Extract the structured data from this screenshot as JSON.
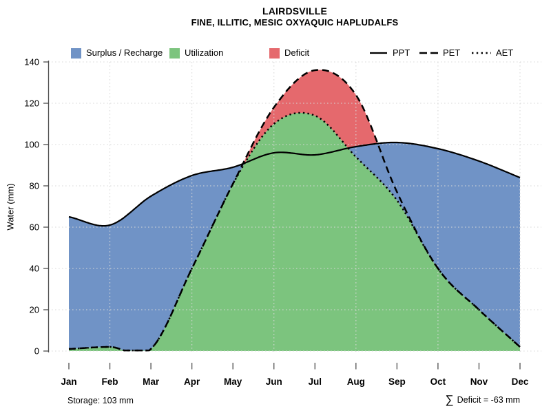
{
  "chart_data": {
    "type": "area+line",
    "title": "LAIRDSVILLE",
    "subtitle": "FINE, ILLITIC, MESIC OXYAQUIC HAPLUDALFS",
    "ylabel": "Water (mm)",
    "ylim": [
      0,
      140
    ],
    "yticks": [
      0,
      20,
      40,
      60,
      80,
      100,
      120,
      140
    ],
    "x_categories": [
      "Jan",
      "Feb",
      "Mar",
      "Apr",
      "May",
      "Jun",
      "Jul",
      "Aug",
      "Sep",
      "Oct",
      "Nov",
      "Dec"
    ],
    "vertical_gridline_months": [
      "Feb",
      "Apr",
      "Jun",
      "Aug",
      "Oct",
      "Dec"
    ],
    "grid_on": true,
    "legend_position": "top",
    "series": [
      {
        "name": "PPT",
        "style": "solid",
        "color": "#000000",
        "values": [
          65,
          61,
          75,
          85,
          89,
          96,
          95,
          99,
          101,
          98,
          92,
          84
        ]
      },
      {
        "name": "PET",
        "style": "dashed",
        "color": "#000000",
        "values": [
          1,
          2,
          1,
          40,
          81,
          118,
          136,
          124,
          77,
          40,
          20,
          2
        ]
      },
      {
        "name": "AET",
        "style": "dotted",
        "color": "#000000",
        "values": [
          1,
          2,
          1,
          40,
          81,
          110,
          114,
          94,
          73,
          40,
          20,
          2
        ]
      }
    ],
    "areas": [
      {
        "label": "Surplus / Recharge",
        "color": "#7093C6"
      },
      {
        "label": "Utilization",
        "color": "#7CC47E"
      },
      {
        "label": "Deficit",
        "color": "#E5696D"
      }
    ],
    "annotations": {
      "storage": "Storage: 103 mm",
      "deficit_sigma": "∑",
      "deficit_text": "Deficit = -63 mm"
    }
  },
  "legend": {
    "lines": [
      {
        "label": "PPT",
        "dash": "none"
      },
      {
        "label": "PET",
        "dash": "10 5"
      },
      {
        "label": "AET",
        "dash": "2.4 4"
      }
    ]
  }
}
